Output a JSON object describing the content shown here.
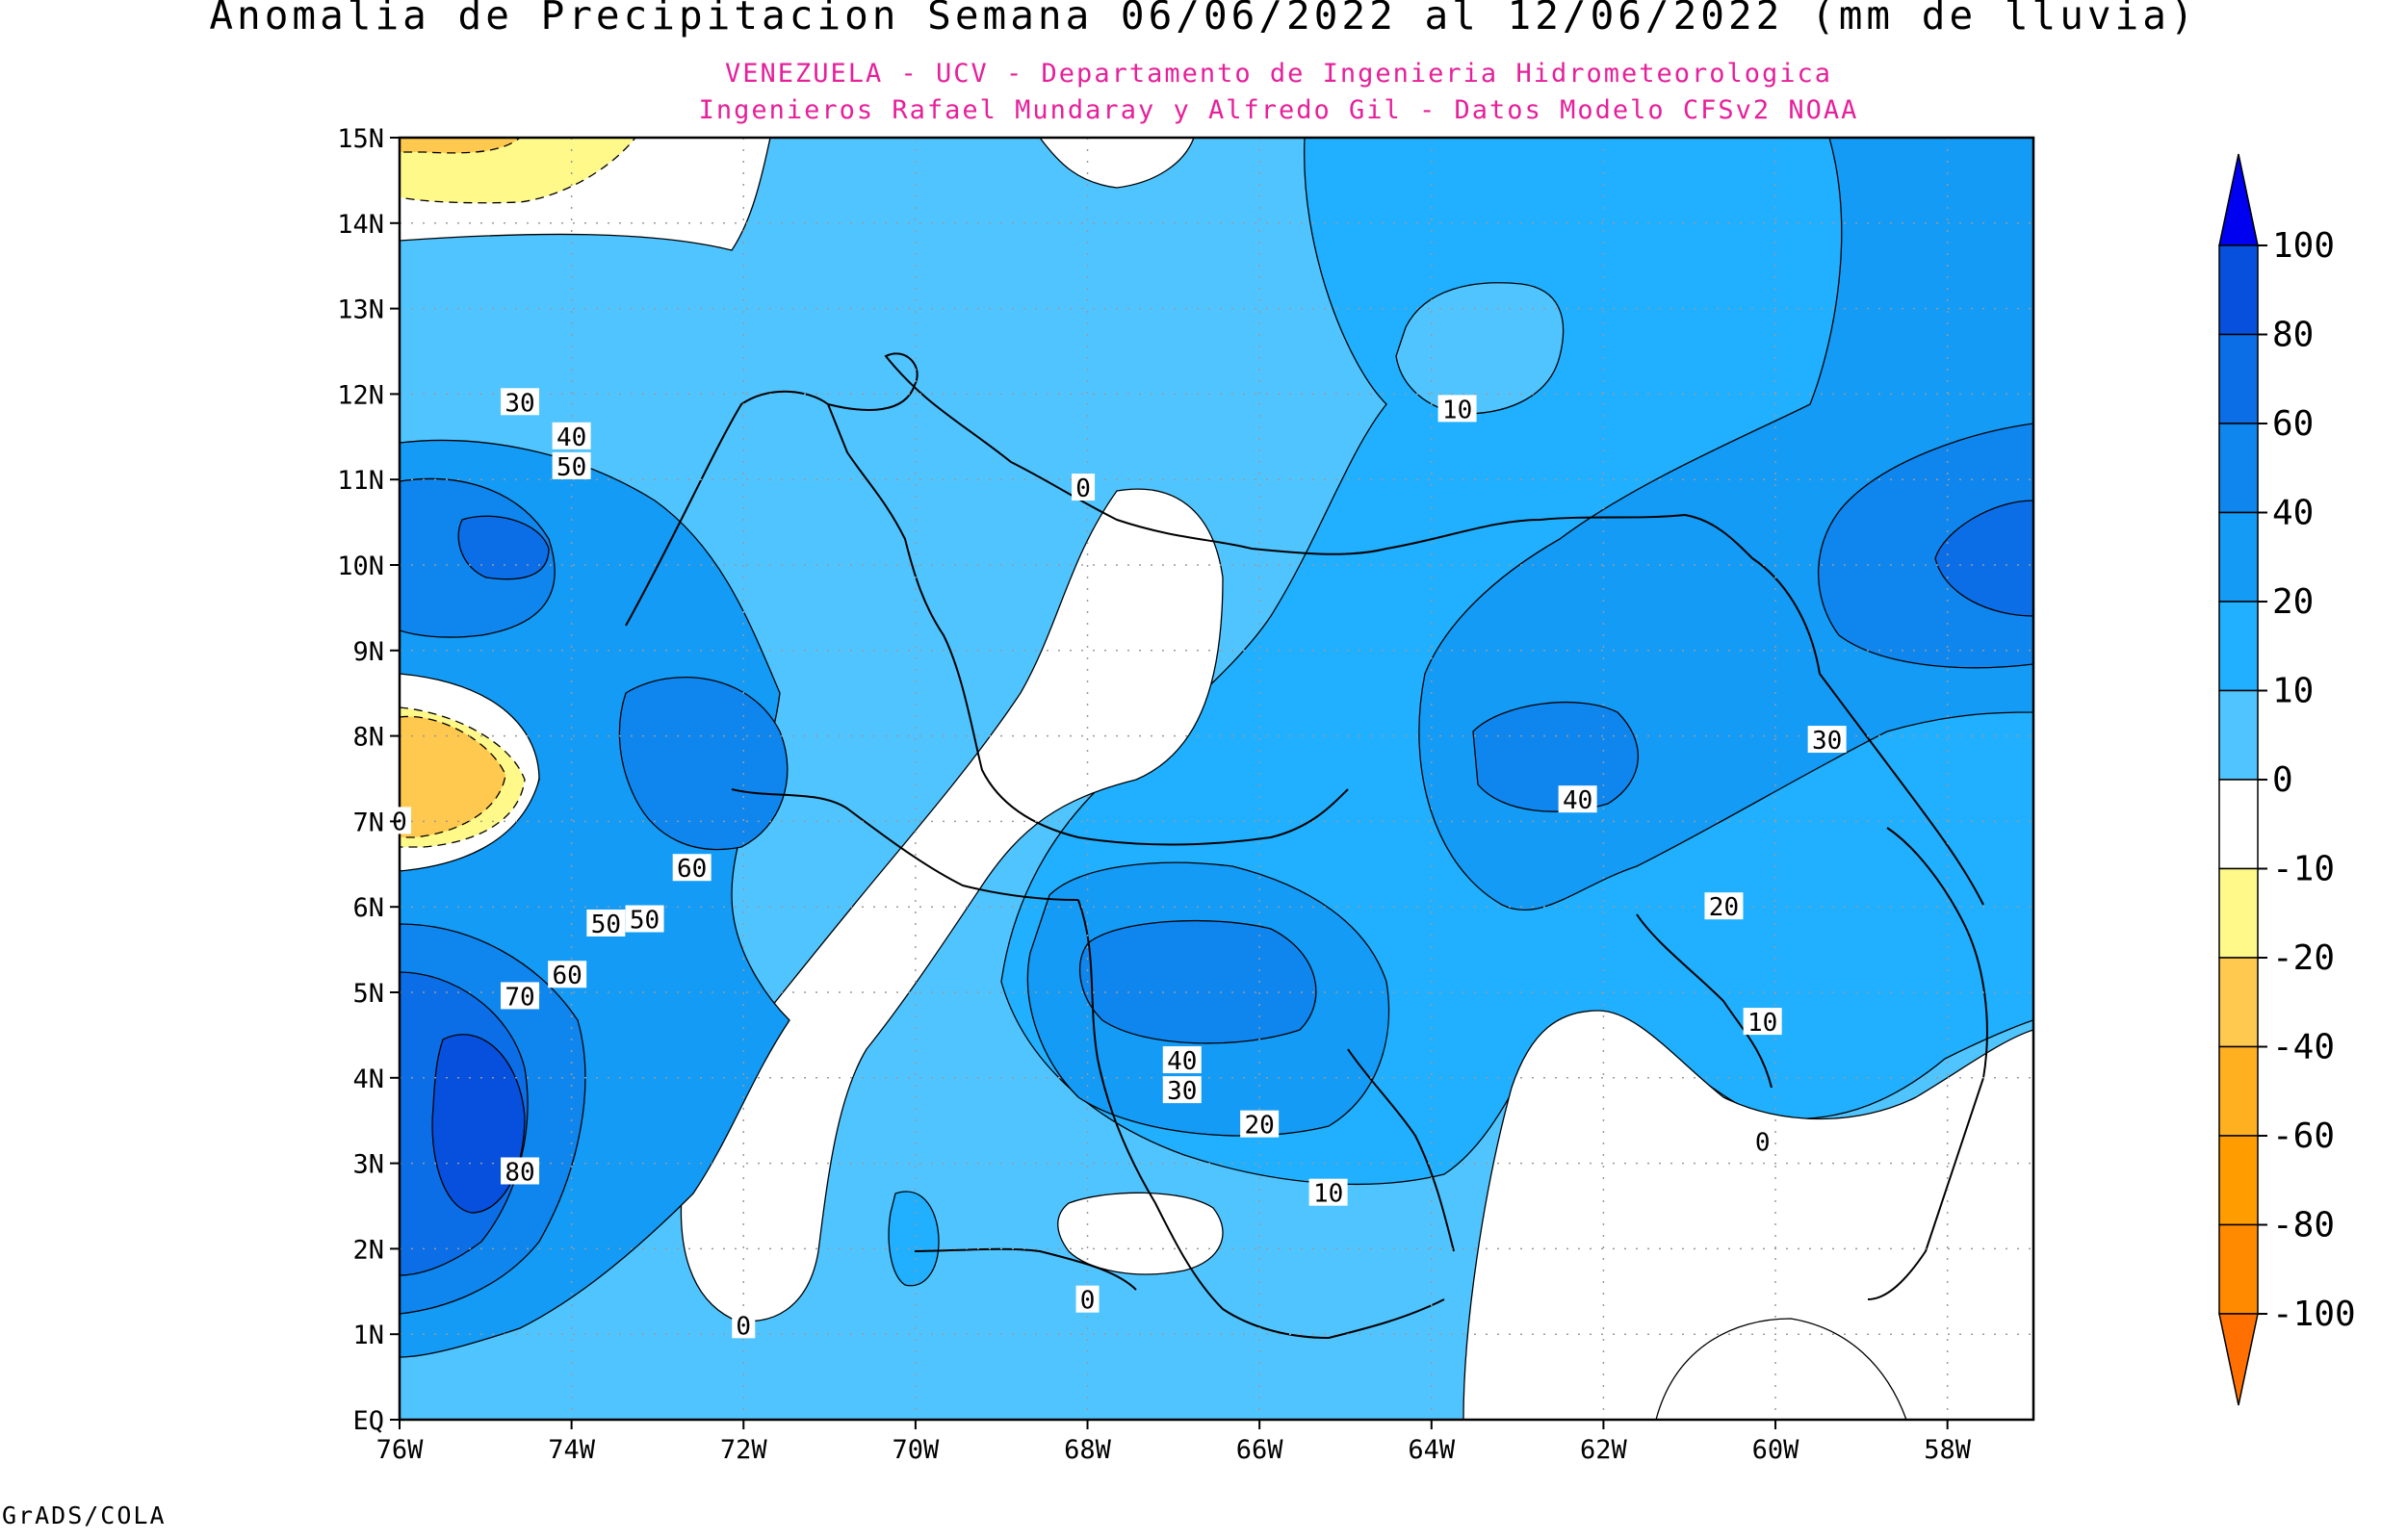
{
  "title": "Anomalia de Precipitacion Semana 06/06/2022 al 12/06/2022 (mm de lluvia)",
  "subtitle_line1": "VENEZUELA - UCV - Departamento de Ingenieria Hidrometeorologica",
  "subtitle_line2": "Ingenieros Rafael Mundaray y Alfredo Gil - Datos Modelo CFSv2 NOAA",
  "credit": "GrADS/COLA",
  "colors": {
    "subtitle": "#e6209a",
    "level_0_10": "#50c4ff",
    "level_10_20": "#20b0ff",
    "level_20_40": "#139bf5",
    "level_40_60": "#0f86ee",
    "level_60_80": "#0b6ee6",
    "level_80_100": "#0650dd",
    "level_over_100": "#0000f0",
    "level_neg_10_20": "#fff98a",
    "level_neg_20_40": "#ffc84e",
    "level_neg_40_60": "#ffb020",
    "level_neg_60_80": "#ff9c00",
    "level_neg_80_100": "#ff8a00",
    "level_under_neg100": "#ff7000"
  },
  "map": {
    "lat_labels": [
      "15N",
      "14N",
      "13N",
      "12N",
      "11N",
      "10N",
      "9N",
      "8N",
      "7N",
      "6N",
      "5N",
      "4N",
      "3N",
      "2N",
      "1N",
      "EQ"
    ],
    "lon_labels": [
      "76W",
      "74W",
      "72W",
      "70W",
      "68W",
      "66W",
      "64W",
      "62W",
      "60W",
      "58W"
    ],
    "contour_labels": [
      {
        "t": "30",
        "lon": -74.6,
        "lat": 11.9
      },
      {
        "t": "40",
        "lon": -74.0,
        "lat": 11.5
      },
      {
        "t": "50",
        "lon": -74.0,
        "lat": 11.15
      },
      {
        "t": "60",
        "lon": -72.6,
        "lat": 6.45
      },
      {
        "t": "50",
        "lon": -73.15,
        "lat": 5.85
      },
      {
        "t": "50",
        "lon": -73.6,
        "lat": 5.8
      },
      {
        "t": "60",
        "lon": -74.05,
        "lat": 5.2
      },
      {
        "t": "70",
        "lon": -74.6,
        "lat": 4.95
      },
      {
        "t": "80",
        "lon": -74.6,
        "lat": 2.9
      },
      {
        "t": "0",
        "lon": -72.0,
        "lat": 1.1
      },
      {
        "t": "0",
        "lon": -68.05,
        "lat": 10.9
      },
      {
        "t": "10",
        "lon": -63.7,
        "lat": 11.82
      },
      {
        "t": "40",
        "lon": -62.3,
        "lat": 7.25
      },
      {
        "t": "30",
        "lon": -59.4,
        "lat": 7.95
      },
      {
        "t": "20",
        "lon": -60.6,
        "lat": 6.0
      },
      {
        "t": "10",
        "lon": -60.15,
        "lat": 4.65
      },
      {
        "t": "0",
        "lon": -60.15,
        "lat": 3.25
      },
      {
        "t": "40",
        "lon": -66.9,
        "lat": 4.2
      },
      {
        "t": "30",
        "lon": -66.9,
        "lat": 3.85
      },
      {
        "t": "20",
        "lon": -66.0,
        "lat": 3.45
      },
      {
        "t": "10",
        "lon": -65.2,
        "lat": 2.65
      },
      {
        "t": "0",
        "lon": -68.0,
        "lat": 1.4
      },
      {
        "t": "0",
        "lon": -76.0,
        "lat": 7.0
      }
    ]
  },
  "legend": {
    "labels": [
      "100",
      "80",
      "60",
      "40",
      "20",
      "10",
      "0",
      "-10",
      "-20",
      "-40",
      "-60",
      "-80",
      "-100"
    ]
  }
}
